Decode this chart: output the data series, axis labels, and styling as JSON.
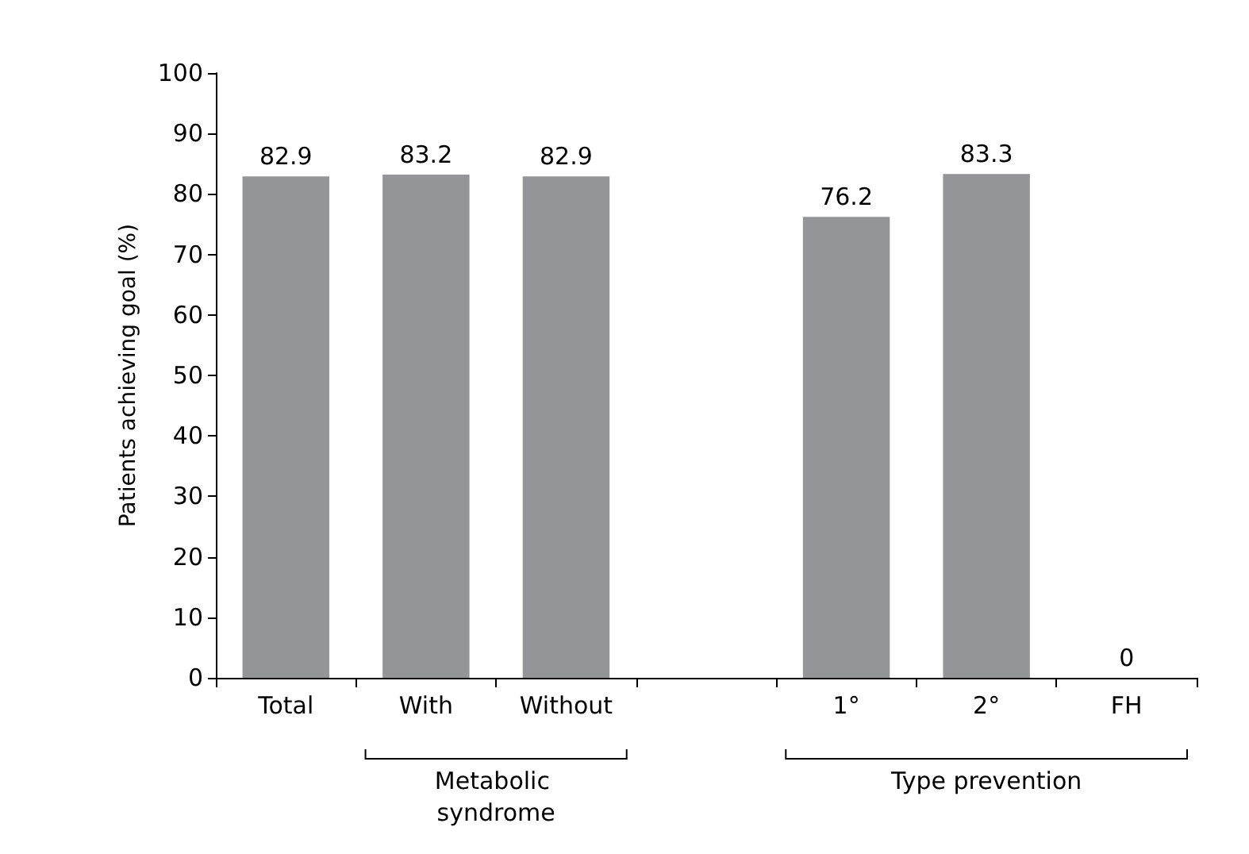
{
  "chart_data": {
    "type": "bar",
    "ylabel": "Patients achieving goal (%)",
    "categories": [
      "Total",
      "With",
      "Without",
      null,
      "1°",
      "2°",
      "FH"
    ],
    "values": [
      82.9,
      83.2,
      82.9,
      null,
      76.2,
      83.3,
      0
    ],
    "color": "#939598",
    "ylim": [
      0,
      100
    ],
    "yticks": [
      0,
      10,
      20,
      30,
      40,
      50,
      60,
      70,
      80,
      90,
      100
    ],
    "data_labels": true,
    "grid": false,
    "annotations": [
      "Metabolic syndrome",
      "Type prevention"
    ]
  }
}
